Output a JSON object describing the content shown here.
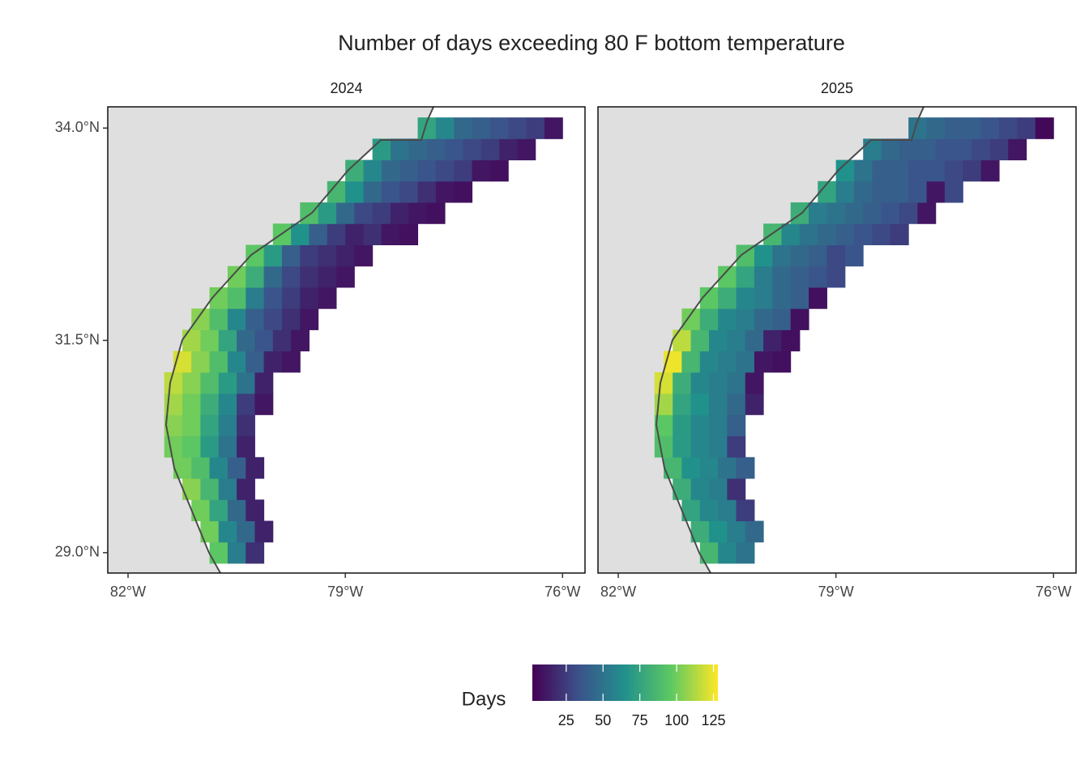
{
  "chart_data": {
    "type": "heatmap",
    "title": "Number of days exceeding 80 F bottom temperature",
    "xlim": [
      -82.28,
      -75.69
    ],
    "ylim": [
      28.76,
      34.25
    ],
    "xticks": [
      {
        "value": -82,
        "label": "82°W"
      },
      {
        "value": -79,
        "label": "79°W"
      },
      {
        "value": -76,
        "label": "76°W"
      }
    ],
    "yticks": [
      {
        "value": 29,
        "label": "29.0°N"
      },
      {
        "value": 31.5,
        "label": "31.5°N"
      },
      {
        "value": 34,
        "label": "34.0°N"
      }
    ],
    "colorbar": {
      "title": "Days",
      "lim": [
        2,
        128
      ],
      "ticks": [
        25,
        50,
        75,
        100,
        125
      ],
      "colormap": "viridis"
    },
    "cell_size": 0.25,
    "panels": [
      {
        "title": "2024",
        "rows": [
          {
            "lat": 29.0,
            "lon0": -80.75,
            "values": [
              95,
              55,
              20
            ]
          },
          {
            "lat": 29.25,
            "lon0": -80.875,
            "values": [
              100,
              60,
              45,
              15
            ]
          },
          {
            "lat": 29.5,
            "lon0": -81.0,
            "values": [
              100,
              75,
              45,
              15
            ]
          },
          {
            "lat": 29.75,
            "lon0": -81.125,
            "values": [
              105,
              85,
              55,
              15
            ]
          },
          {
            "lat": 30.0,
            "lon0": -81.25,
            "values": [
              100,
              90,
              60,
              40,
              15
            ]
          },
          {
            "lat": 30.25,
            "lon0": -81.375,
            "values": [
              100,
              95,
              70,
              50,
              15
            ]
          },
          {
            "lat": 30.5,
            "lon0": -81.375,
            "values": [
              105,
              100,
              75,
              55,
              20
            ]
          },
          {
            "lat": 30.75,
            "lon0": -81.375,
            "values": [
              110,
              100,
              80,
              60,
              25,
              10
            ]
          },
          {
            "lat": 31.0,
            "lon0": -81.375,
            "values": [
              115,
              105,
              90,
              70,
              50,
              15
            ]
          },
          {
            "lat": 31.25,
            "lon0": -81.25,
            "values": [
              120,
              105,
              90,
              60,
              40,
              15,
              10
            ]
          },
          {
            "lat": 31.5,
            "lon0": -81.125,
            "values": [
              110,
              100,
              75,
              45,
              35,
              20,
              10
            ]
          },
          {
            "lat": 31.75,
            "lon0": -81.0,
            "values": [
              105,
              90,
              60,
              40,
              30,
              20,
              10
            ]
          },
          {
            "lat": 32.0,
            "lon0": -80.75,
            "values": [
              100,
              90,
              55,
              35,
              25,
              15,
              10
            ]
          },
          {
            "lat": 32.25,
            "lon0": -80.5,
            "values": [
              100,
              80,
              45,
              30,
              20,
              15,
              10
            ]
          },
          {
            "lat": 32.5,
            "lon0": -80.25,
            "values": [
              95,
              70,
              40,
              25,
              20,
              15,
              10
            ]
          },
          {
            "lat": 32.75,
            "lon0": -79.875,
            "values": [
              95,
              65,
              40,
              25,
              15,
              20,
              10,
              8
            ]
          },
          {
            "lat": 33.0,
            "lon0": -79.5,
            "values": [
              90,
              70,
              45,
              30,
              25,
              15,
              10,
              8
            ]
          },
          {
            "lat": 33.25,
            "lon0": -79.125,
            "values": [
              85,
              65,
              45,
              35,
              30,
              20,
              10,
              8
            ]
          },
          {
            "lat": 33.5,
            "lon0": -78.875,
            "values": [
              80,
              60,
              45,
              40,
              35,
              30,
              25,
              10,
              8
            ]
          },
          {
            "lat": 33.75,
            "lon0": -78.5,
            "values": [
              70,
              50,
              45,
              40,
              35,
              30,
              25,
              15,
              10
            ]
          },
          {
            "lat": 34.0,
            "lon0": -77.875,
            "values": [
              75,
              60,
              45,
              40,
              35,
              30,
              25,
              10
            ]
          }
        ]
      },
      {
        "title": "2025",
        "rows": [
          {
            "lat": 29.0,
            "lon0": -80.75,
            "values": [
              85,
              60,
              50
            ]
          },
          {
            "lat": 29.25,
            "lon0": -80.875,
            "values": [
              80,
              65,
              55,
              45
            ]
          },
          {
            "lat": 29.5,
            "lon0": -81.0,
            "values": [
              75,
              60,
              55,
              25
            ]
          },
          {
            "lat": 29.75,
            "lon0": -81.125,
            "values": [
              80,
              60,
              55,
              20
            ]
          },
          {
            "lat": 30.0,
            "lon0": -81.25,
            "values": [
              85,
              65,
              60,
              50,
              40
            ]
          },
          {
            "lat": 30.25,
            "lon0": -81.375,
            "values": [
              90,
              70,
              60,
              55,
              25
            ]
          },
          {
            "lat": 30.5,
            "lon0": -81.375,
            "values": [
              95,
              70,
              60,
              55,
              40
            ]
          },
          {
            "lat": 30.75,
            "lon0": -81.375,
            "values": [
              110,
              75,
              65,
              55,
              45,
              15
            ]
          },
          {
            "lat": 31.0,
            "lon0": -81.375,
            "values": [
              120,
              80,
              60,
              55,
              50,
              10
            ]
          },
          {
            "lat": 31.25,
            "lon0": -81.25,
            "values": [
              125,
              85,
              60,
              55,
              50,
              10,
              8
            ]
          },
          {
            "lat": 31.5,
            "lon0": -81.125,
            "values": [
              115,
              85,
              60,
              55,
              45,
              15,
              8
            ]
          },
          {
            "lat": 31.75,
            "lon0": -81.0,
            "values": [
              100,
              80,
              60,
              55,
              45,
              40,
              8
            ]
          },
          {
            "lat": 32.0,
            "lon0": -80.75,
            "values": [
              95,
              80,
              60,
              55,
              45,
              40,
              8
            ]
          },
          {
            "lat": 32.25,
            "lon0": -80.5,
            "values": [
              95,
              75,
              55,
              45,
              40,
              35,
              30
            ]
          },
          {
            "lat": 32.5,
            "lon0": -80.25,
            "values": [
              90,
              65,
              50,
              45,
              40,
              30,
              35
            ]
          },
          {
            "lat": 32.75,
            "lon0": -79.875,
            "values": [
              85,
              60,
              50,
              45,
              40,
              35,
              30,
              25
            ]
          },
          {
            "lat": 33.0,
            "lon0": -79.5,
            "values": [
              80,
              55,
              50,
              45,
              40,
              35,
              30,
              10
            ]
          },
          {
            "lat": 33.25,
            "lon0": -79.125,
            "values": [
              75,
              55,
              45,
              40,
              40,
              35,
              10,
              30
            ]
          },
          {
            "lat": 33.5,
            "lon0": -78.875,
            "values": [
              65,
              50,
              40,
              40,
              35,
              35,
              30,
              25,
              10
            ]
          },
          {
            "lat": 33.75,
            "lon0": -78.5,
            "values": [
              55,
              45,
              40,
              40,
              35,
              35,
              30,
              25,
              10
            ]
          },
          {
            "lat": 34.0,
            "lon0": -77.875,
            "values": [
              50,
              45,
              40,
              40,
              35,
              30,
              25,
              5
            ]
          }
        ]
      }
    ]
  }
}
